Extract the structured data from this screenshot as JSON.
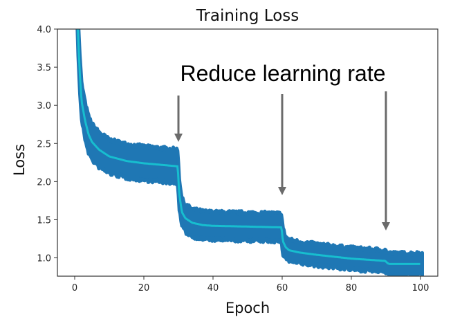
{
  "chart_data": {
    "type": "line",
    "title": "Training Loss",
    "xlabel": "Epoch",
    "ylabel": "Loss",
    "xlim": [
      -5,
      105
    ],
    "ylim": [
      0.76,
      4.0
    ],
    "xticks": [
      "0",
      "20",
      "40",
      "60",
      "80",
      "100"
    ],
    "yticks": [
      "1.0",
      "1.5",
      "2.0",
      "2.5",
      "3.0",
      "3.5",
      "4.0"
    ],
    "grid": false,
    "mean_series": {
      "color": "#17becf",
      "x": [
        0.5,
        1,
        1.5,
        2,
        3,
        4,
        5,
        7,
        10,
        15,
        20,
        25,
        29.8,
        30.2,
        31,
        32,
        34,
        37,
        40,
        50,
        59.8,
        60.2,
        61,
        62,
        65,
        70,
        80,
        89.8,
        90.5,
        91,
        95,
        100
      ],
      "y": [
        4.6,
        3.9,
        3.4,
        3.05,
        2.8,
        2.62,
        2.52,
        2.42,
        2.33,
        2.27,
        2.24,
        2.22,
        2.2,
        1.85,
        1.6,
        1.52,
        1.46,
        1.43,
        1.42,
        1.41,
        1.4,
        1.22,
        1.14,
        1.1,
        1.07,
        1.04,
        0.99,
        0.96,
        0.93,
        0.92,
        0.92,
        0.92
      ]
    },
    "band_series": {
      "color": "#1f77b4",
      "halfwidth_x": [
        0,
        10,
        30,
        31,
        60,
        61,
        90,
        100
      ],
      "halfwidth_y": [
        0.25,
        0.22,
        0.22,
        0.18,
        0.18,
        0.14,
        0.14,
        0.14
      ]
    },
    "annotations": {
      "text": "Reduce learning rate",
      "arrow_epochs": [
        30,
        60,
        90
      ],
      "arrow_color": "#6b6b6b"
    }
  }
}
